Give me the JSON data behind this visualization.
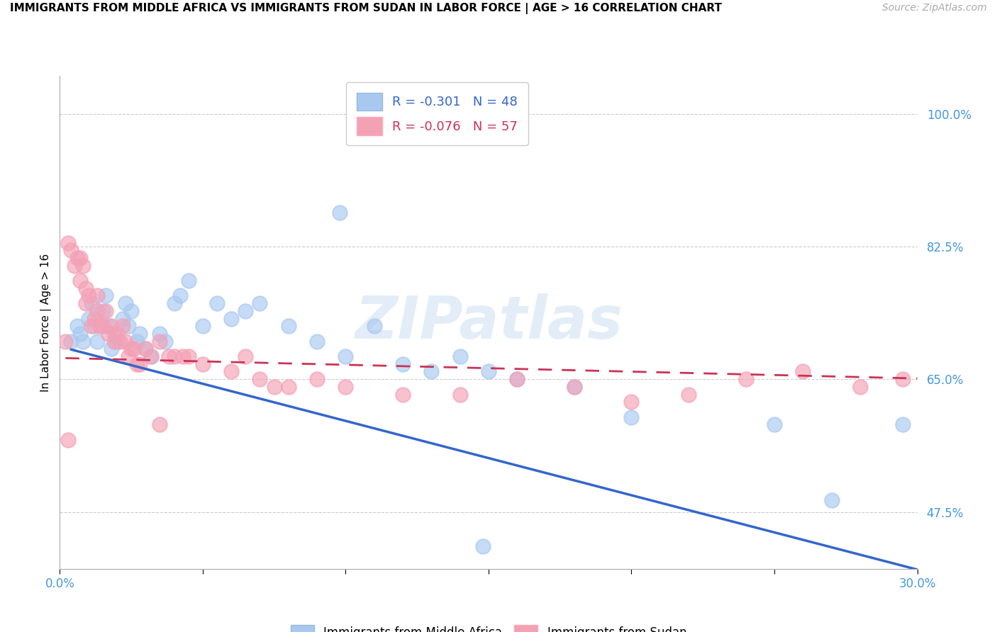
{
  "title": "IMMIGRANTS FROM MIDDLE AFRICA VS IMMIGRANTS FROM SUDAN IN LABOR FORCE | AGE > 16 CORRELATION CHART",
  "source": "Source: ZipAtlas.com",
  "ylabel": "In Labor Force | Age > 16",
  "xlim": [
    0.0,
    0.3
  ],
  "ylim": [
    0.4,
    1.05
  ],
  "yticks": [
    0.475,
    0.65,
    0.825,
    1.0
  ],
  "ytick_labels": [
    "47.5%",
    "65.0%",
    "82.5%",
    "100.0%"
  ],
  "xticks": [
    0.0,
    0.05,
    0.1,
    0.15,
    0.2,
    0.25,
    0.3
  ],
  "xtick_labels": [
    "0.0%",
    "",
    "",
    "",
    "",
    "",
    "30.0%"
  ],
  "color_blue": "#A8C8F0",
  "color_pink": "#F4A0B5",
  "line_blue": "#3366CC",
  "line_pink": "#CC3355",
  "R_blue": -0.301,
  "N_blue": 48,
  "R_pink": -0.076,
  "N_pink": 57,
  "legend_label_blue": "Immigrants from Middle Africa",
  "legend_label_pink": "Immigrants from Sudan",
  "watermark": "ZIPatlas",
  "blue_intercept": 0.693,
  "blue_slope": -0.98,
  "pink_intercept": 0.678,
  "pink_slope": -0.09,
  "blue_points_x": [
    0.004,
    0.006,
    0.007,
    0.008,
    0.01,
    0.011,
    0.012,
    0.013,
    0.015,
    0.016,
    0.017,
    0.018,
    0.019,
    0.02,
    0.022,
    0.023,
    0.024,
    0.025,
    0.027,
    0.028,
    0.03,
    0.032,
    0.035,
    0.037,
    0.04,
    0.042,
    0.045,
    0.05,
    0.055,
    0.06,
    0.065,
    0.07,
    0.08,
    0.09,
    0.1,
    0.11,
    0.12,
    0.13,
    0.14,
    0.15,
    0.16,
    0.18,
    0.2,
    0.25,
    0.27,
    0.295,
    0.098,
    0.148
  ],
  "blue_points_y": [
    0.7,
    0.72,
    0.71,
    0.7,
    0.73,
    0.75,
    0.72,
    0.7,
    0.74,
    0.76,
    0.72,
    0.69,
    0.71,
    0.7,
    0.73,
    0.75,
    0.72,
    0.74,
    0.7,
    0.71,
    0.69,
    0.68,
    0.71,
    0.7,
    0.75,
    0.76,
    0.78,
    0.72,
    0.75,
    0.73,
    0.74,
    0.75,
    0.72,
    0.7,
    0.68,
    0.72,
    0.67,
    0.66,
    0.68,
    0.66,
    0.65,
    0.64,
    0.6,
    0.59,
    0.49,
    0.59,
    0.87,
    0.43
  ],
  "pink_points_x": [
    0.002,
    0.003,
    0.004,
    0.005,
    0.006,
    0.007,
    0.007,
    0.008,
    0.009,
    0.009,
    0.01,
    0.011,
    0.012,
    0.013,
    0.013,
    0.014,
    0.015,
    0.016,
    0.017,
    0.018,
    0.019,
    0.02,
    0.021,
    0.022,
    0.023,
    0.024,
    0.025,
    0.026,
    0.027,
    0.028,
    0.03,
    0.032,
    0.035,
    0.038,
    0.04,
    0.043,
    0.045,
    0.05,
    0.06,
    0.065,
    0.07,
    0.075,
    0.08,
    0.09,
    0.1,
    0.12,
    0.14,
    0.16,
    0.18,
    0.2,
    0.22,
    0.24,
    0.26,
    0.28,
    0.295,
    0.003,
    0.035
  ],
  "pink_points_y": [
    0.7,
    0.83,
    0.82,
    0.8,
    0.81,
    0.78,
    0.81,
    0.8,
    0.77,
    0.75,
    0.76,
    0.72,
    0.73,
    0.76,
    0.74,
    0.72,
    0.72,
    0.74,
    0.71,
    0.72,
    0.7,
    0.71,
    0.7,
    0.72,
    0.7,
    0.68,
    0.69,
    0.69,
    0.67,
    0.67,
    0.69,
    0.68,
    0.7,
    0.68,
    0.68,
    0.68,
    0.68,
    0.67,
    0.66,
    0.68,
    0.65,
    0.64,
    0.64,
    0.65,
    0.64,
    0.63,
    0.63,
    0.65,
    0.64,
    0.62,
    0.63,
    0.65,
    0.66,
    0.64,
    0.65,
    0.57,
    0.59
  ]
}
